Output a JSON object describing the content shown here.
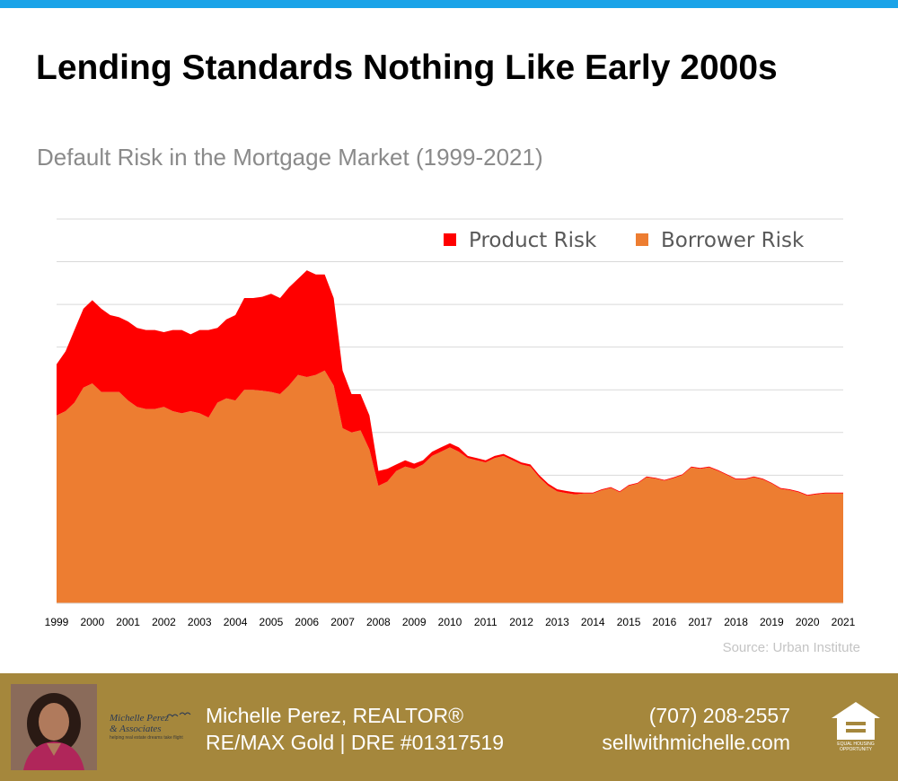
{
  "header": {
    "accent_color": "#1aa3e8",
    "title": "Lending Standards Nothing Like Early 2000s",
    "subtitle": "Default Risk in the Mortgage Market (1999-2021)"
  },
  "chart_data": {
    "type": "area",
    "stacked": true,
    "title": "",
    "xlabel": "",
    "ylabel": "",
    "ylim": [
      0,
      9
    ],
    "grid": true,
    "legend_position": "top-right",
    "x": [
      1999.0,
      1999.25,
      1999.5,
      1999.75,
      2000.0,
      2000.25,
      2000.5,
      2000.75,
      2001.0,
      2001.25,
      2001.5,
      2001.75,
      2002.0,
      2002.25,
      2002.5,
      2002.75,
      2003.0,
      2003.25,
      2003.5,
      2003.75,
      2004.0,
      2004.25,
      2004.5,
      2004.75,
      2005.0,
      2005.25,
      2005.5,
      2005.75,
      2006.0,
      2006.25,
      2006.5,
      2006.75,
      2007.0,
      2007.25,
      2007.5,
      2007.75,
      2008.0,
      2008.25,
      2008.5,
      2008.75,
      2009.0,
      2009.25,
      2009.5,
      2009.75,
      2010.0,
      2010.25,
      2010.5,
      2010.75,
      2011.0,
      2011.25,
      2011.5,
      2011.75,
      2012.0,
      2012.25,
      2012.5,
      2012.75,
      2013.0,
      2013.25,
      2013.5,
      2013.75,
      2014.0,
      2014.25,
      2014.5,
      2014.75,
      2015.0,
      2015.25,
      2015.5,
      2015.75,
      2016.0,
      2016.25,
      2016.5,
      2016.75,
      2017.0,
      2017.25,
      2017.5,
      2017.75,
      2018.0,
      2018.25,
      2018.5,
      2018.75,
      2019.0,
      2019.25,
      2019.5,
      2019.75,
      2020.0,
      2020.25,
      2020.5,
      2020.75,
      2021.0
    ],
    "series": [
      {
        "name": "Borrower Risk",
        "color": "#ed7d31",
        "values": [
          4.4,
          4.5,
          4.7,
          5.05,
          5.15,
          4.95,
          4.95,
          4.95,
          4.75,
          4.6,
          4.55,
          4.55,
          4.6,
          4.5,
          4.45,
          4.5,
          4.45,
          4.35,
          4.7,
          4.8,
          4.75,
          5.0,
          5.0,
          4.98,
          4.95,
          4.9,
          5.1,
          5.35,
          5.3,
          5.35,
          5.45,
          5.1,
          4.1,
          4.0,
          4.05,
          3.6,
          2.75,
          2.85,
          3.1,
          3.2,
          3.15,
          3.25,
          3.45,
          3.55,
          3.65,
          3.55,
          3.4,
          3.35,
          3.3,
          3.4,
          3.45,
          3.35,
          3.25,
          3.2,
          2.95,
          2.75,
          2.62,
          2.58,
          2.55,
          2.57,
          2.57,
          2.65,
          2.7,
          2.6,
          2.75,
          2.8,
          2.95,
          2.92,
          2.87,
          2.93,
          3.0,
          3.18,
          3.15,
          3.18,
          3.1,
          3.0,
          2.9,
          2.9,
          2.95,
          2.9,
          2.8,
          2.68,
          2.65,
          2.6,
          2.52,
          2.55,
          2.57,
          2.57,
          2.57
        ]
      },
      {
        "name": "Product Risk",
        "color": "#ff0000",
        "values": [
          1.2,
          1.4,
          1.7,
          1.85,
          1.95,
          1.95,
          1.8,
          1.75,
          1.85,
          1.85,
          1.85,
          1.85,
          1.75,
          1.9,
          1.95,
          1.8,
          1.95,
          2.05,
          1.75,
          1.85,
          2.0,
          2.15,
          2.15,
          2.2,
          2.3,
          2.25,
          2.3,
          2.25,
          2.5,
          2.35,
          2.25,
          2.05,
          1.35,
          0.9,
          0.85,
          0.8,
          0.35,
          0.3,
          0.15,
          0.15,
          0.12,
          0.1,
          0.1,
          0.1,
          0.1,
          0.1,
          0.05,
          0.05,
          0.05,
          0.05,
          0.05,
          0.05,
          0.05,
          0.05,
          0.05,
          0.05,
          0.05,
          0.05,
          0.05,
          0.02,
          0.02,
          0.02,
          0.02,
          0.02,
          0.02,
          0.02,
          0.02,
          0.02,
          0.02,
          0.02,
          0.02,
          0.02,
          0.02,
          0.02,
          0.02,
          0.02,
          0.02,
          0.02,
          0.02,
          0.02,
          0.02,
          0.02,
          0.02,
          0.02,
          0.02,
          0.02,
          0.02,
          0.02,
          0.02
        ]
      }
    ],
    "x_ticks": [
      1999,
      2000,
      2001,
      2002,
      2003,
      2004,
      2005,
      2006,
      2007,
      2008,
      2009,
      2010,
      2011,
      2012,
      2013,
      2014,
      2015,
      2016,
      2017,
      2018,
      2019,
      2020,
      2021
    ],
    "x_tick_labels": [
      "1999",
      "2000",
      "2001",
      "2002",
      "2003",
      "2004",
      "2005",
      "2006",
      "2007",
      "2008",
      "2009",
      "2010",
      "2011",
      "2012",
      "2013",
      "2014",
      "2015",
      "2016",
      "2017",
      "2018",
      "2019",
      "2020",
      "2021"
    ],
    "gridlines": [
      1,
      2,
      3,
      4,
      5,
      6,
      7,
      8,
      9
    ],
    "legend": [
      {
        "label": "Product Risk",
        "color": "#ff0000"
      },
      {
        "label": "Borrower Risk",
        "color": "#ed7d31"
      }
    ]
  },
  "source": "Source: Urban Institute",
  "footer": {
    "background_color": "#a5873c",
    "logo_line1": "Michelle Perez",
    "logo_line2": "& Associates",
    "logo_tagline": "helping real estate dreams take flight",
    "agent_name": "Michelle Perez, REALTOR®",
    "agent_office": "RE/MAX Gold | DRE #01317519",
    "phone": "(707) 208-2557",
    "website": "sellwithmichelle.com",
    "eho_line1": "EQUAL HOUSING",
    "eho_line2": "OPPORTUNITY"
  }
}
